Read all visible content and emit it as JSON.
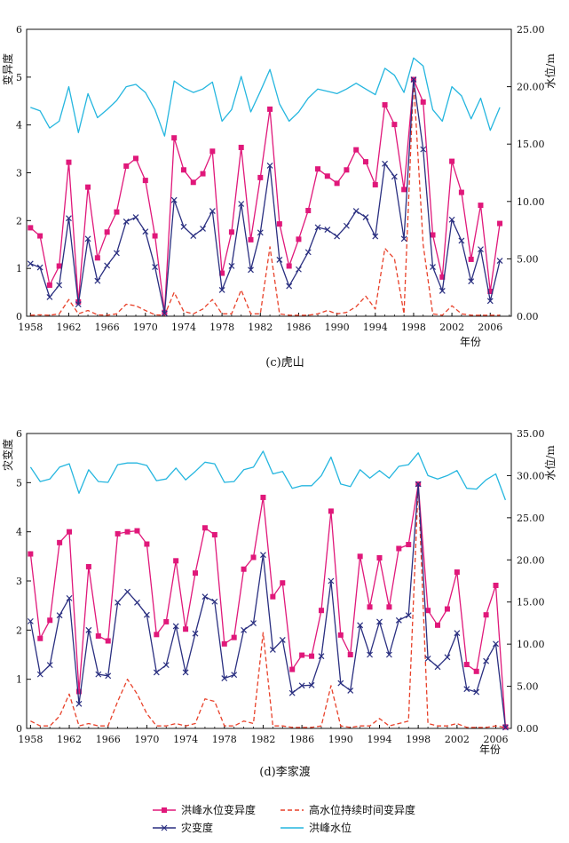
{
  "colors": {
    "variability": "#e0187a",
    "disaster": "#2a2f80",
    "duration": "#e8412a",
    "peak_level": "#25b6df"
  },
  "legend": {
    "variability": "洪峰水位变异度",
    "duration": "高水位持续时间变异度",
    "disaster": "灾变度",
    "peak_level": "洪峰水位"
  },
  "chart_data": [
    {
      "type": "line",
      "caption": "(c)虎山",
      "ylabel_left": "变异度",
      "ylabel_right": "水位/m",
      "xlabel": "年份",
      "x_ticks": [
        1958,
        1962,
        1966,
        1970,
        1974,
        1978,
        1982,
        1986,
        1990,
        1994,
        1998,
        2002,
        2006
      ],
      "x_tick_labels": [
        "1958",
        "1962",
        "1966",
        "1970",
        "1974",
        "1978",
        "1982",
        "1986",
        "1990",
        "1994",
        "1998",
        "2002",
        "2006"
      ],
      "xlim": [
        1957.6,
        2008.2
      ],
      "ylim_left": [
        0,
        6
      ],
      "ylim_right": [
        0,
        25
      ],
      "y_left_tick_labels": [
        "0",
        "1",
        "2",
        "3",
        "4",
        "5",
        "6"
      ],
      "y_right_tick_labels": [
        "0.00",
        "5.00",
        "10.00",
        "15.00",
        "20.00",
        "25.00"
      ],
      "series": [
        {
          "key": "variability",
          "axis": "left",
          "x": [
            1958,
            1959,
            1960,
            1961,
            1962,
            1963,
            1964,
            1965,
            1966,
            1967,
            1968,
            1969,
            1970,
            1971,
            1972,
            1973,
            1974,
            1975,
            1976,
            1977,
            1978,
            1979,
            1980,
            1981,
            1982,
            1983,
            1984,
            1985,
            1986,
            1987,
            1988,
            1989,
            1990,
            1991,
            1992,
            1993,
            1994,
            1995,
            1996,
            1997,
            1998,
            1999,
            2000,
            2001,
            2002,
            2003,
            2004,
            2005,
            2006,
            2007
          ],
          "values": [
            1.85,
            1.68,
            0.65,
            1.05,
            3.22,
            0.3,
            2.7,
            1.22,
            1.76,
            2.18,
            3.14,
            3.3,
            2.84,
            1.68,
            0.08,
            3.73,
            3.06,
            2.8,
            2.98,
            3.45,
            0.9,
            1.76,
            3.53,
            1.6,
            2.9,
            4.33,
            1.93,
            1.05,
            1.61,
            2.21,
            3.08,
            2.93,
            2.78,
            3.06,
            3.48,
            3.23,
            2.75,
            4.42,
            4.01,
            2.65,
            4.95,
            4.48,
            1.7,
            0.82,
            3.24,
            2.59,
            1.19,
            2.32,
            0.52,
            1.94
          ]
        },
        {
          "key": "disaster",
          "axis": "left",
          "x": [
            1958,
            1959,
            1960,
            1961,
            1962,
            1963,
            1964,
            1965,
            1966,
            1967,
            1968,
            1969,
            1970,
            1971,
            1972,
            1973,
            1974,
            1975,
            1976,
            1977,
            1978,
            1979,
            1980,
            1981,
            1982,
            1983,
            1984,
            1985,
            1986,
            1987,
            1988,
            1989,
            1990,
            1991,
            1992,
            1993,
            1994,
            1995,
            1996,
            1997,
            1998,
            1999,
            2000,
            2001,
            2002,
            2003,
            2004,
            2005,
            2006,
            2007
          ],
          "values": [
            1.1,
            1.02,
            0.4,
            0.65,
            2.05,
            0.25,
            1.62,
            0.74,
            1.06,
            1.32,
            1.98,
            2.07,
            1.77,
            1.03,
            0.06,
            2.43,
            1.87,
            1.68,
            1.83,
            2.2,
            0.55,
            1.05,
            2.35,
            0.97,
            1.75,
            3.15,
            1.18,
            0.63,
            0.98,
            1.34,
            1.86,
            1.81,
            1.67,
            1.89,
            2.2,
            2.07,
            1.67,
            3.19,
            2.92,
            1.62,
            4.95,
            3.49,
            1.03,
            0.53,
            2.02,
            1.58,
            0.73,
            1.4,
            0.32,
            1.16
          ]
        },
        {
          "key": "duration",
          "axis": "left",
          "x": [
            1958,
            1959,
            1960,
            1961,
            1962,
            1963,
            1964,
            1965,
            1966,
            1967,
            1968,
            1969,
            1970,
            1971,
            1972,
            1973,
            1974,
            1975,
            1976,
            1977,
            1978,
            1979,
            1980,
            1981,
            1982,
            1983,
            1984,
            1985,
            1986,
            1987,
            1988,
            1989,
            1990,
            1991,
            1992,
            1993,
            1994,
            1995,
            1996,
            1997,
            1998,
            1999,
            2000,
            2001,
            2002,
            2003,
            2004,
            2005,
            2006,
            2007
          ],
          "values": [
            0.02,
            0.03,
            0.02,
            0.05,
            0.35,
            0.05,
            0.12,
            0.03,
            0.02,
            0.05,
            0.25,
            0.22,
            0.12,
            0.03,
            0.02,
            0.5,
            0.1,
            0.05,
            0.15,
            0.35,
            0.05,
            0.05,
            0.55,
            0.05,
            0.05,
            1.45,
            0.05,
            0.02,
            0.02,
            0.02,
            0.05,
            0.12,
            0.05,
            0.08,
            0.2,
            0.42,
            0.15,
            1.42,
            1.2,
            0.05,
            4.95,
            1.5,
            0.05,
            0.02,
            0.22,
            0.05,
            0.02,
            0.02,
            0.02,
            0.02
          ]
        },
        {
          "key": "peak_level",
          "axis": "right",
          "x": [
            1958,
            1959,
            1960,
            1961,
            1962,
            1963,
            1964,
            1965,
            1966,
            1967,
            1968,
            1969,
            1970,
            1971,
            1972,
            1973,
            1974,
            1975,
            1976,
            1977,
            1978,
            1979,
            1980,
            1981,
            1982,
            1983,
            1984,
            1985,
            1986,
            1987,
            1988,
            1989,
            1990,
            1991,
            1992,
            1993,
            1994,
            1995,
            1996,
            1997,
            1998,
            1999,
            2000,
            2001,
            2002,
            2003,
            2004,
            2005,
            2006,
            2007
          ],
          "values": [
            18.2,
            17.9,
            16.4,
            17.0,
            20.0,
            16.0,
            19.4,
            17.3,
            18.0,
            18.8,
            20.0,
            20.2,
            19.5,
            18.0,
            15.7,
            20.5,
            19.9,
            19.5,
            19.8,
            20.4,
            17.0,
            18.0,
            20.9,
            17.8,
            19.6,
            21.5,
            18.5,
            17.0,
            17.8,
            19.0,
            19.8,
            19.6,
            19.4,
            19.8,
            20.3,
            19.8,
            19.3,
            21.6,
            21.0,
            19.5,
            22.5,
            21.8,
            18.0,
            17.0,
            20.0,
            19.2,
            17.2,
            19.0,
            16.2,
            18.2
          ]
        }
      ]
    },
    {
      "type": "line",
      "caption": "(d)李家渡",
      "ylabel_left": "灾变度",
      "ylabel_right": "水位/m",
      "xlabel": "年份",
      "x_ticks": [
        1958,
        1962,
        1966,
        1970,
        1974,
        1978,
        1982,
        1986,
        1990,
        1994,
        1998,
        2002,
        2006
      ],
      "x_tick_labels": [
        "1958",
        "1962",
        "1966",
        "1970",
        "1974",
        "1978",
        "1982",
        "1986",
        "1990",
        "1994",
        "1998",
        "2002",
        "2006"
      ],
      "xlim": [
        1957.6,
        2007.6
      ],
      "ylim_left": [
        0,
        6
      ],
      "ylim_right": [
        0,
        35
      ],
      "y_left_tick_labels": [
        "0",
        "1",
        "2",
        "3",
        "4",
        "5",
        "6"
      ],
      "y_right_tick_labels": [
        "0.00",
        "5.00",
        "10.00",
        "15.00",
        "20.00",
        "25.00",
        "30.00",
        "35.00"
      ],
      "series": [
        {
          "key": "variability",
          "axis": "left",
          "x": [
            1958,
            1959,
            1960,
            1961,
            1962,
            1963,
            1964,
            1965,
            1966,
            1967,
            1968,
            1969,
            1970,
            1971,
            1972,
            1973,
            1974,
            1975,
            1976,
            1977,
            1978,
            1979,
            1980,
            1981,
            1982,
            1983,
            1984,
            1985,
            1986,
            1987,
            1988,
            1989,
            1990,
            1991,
            1992,
            1993,
            1994,
            1995,
            1996,
            1997,
            1998,
            1999,
            2000,
            2001,
            2002,
            2003,
            2004,
            2005,
            2006,
            2007
          ],
          "values": [
            3.55,
            1.83,
            2.2,
            3.78,
            4.0,
            0.75,
            3.29,
            1.88,
            1.78,
            3.96,
            4.0,
            4.02,
            3.75,
            1.91,
            2.17,
            3.41,
            2.02,
            3.16,
            4.08,
            3.94,
            1.72,
            1.85,
            3.24,
            3.48,
            4.7,
            2.68,
            2.96,
            1.2,
            1.49,
            1.47,
            2.4,
            4.42,
            1.9,
            1.5,
            3.5,
            2.47,
            3.47,
            2.47,
            3.66,
            3.74,
            4.97,
            2.4,
            2.1,
            2.43,
            3.18,
            1.3,
            1.16,
            2.31,
            2.91,
            0.03
          ]
        },
        {
          "key": "disaster",
          "axis": "left",
          "x": [
            1958,
            1959,
            1960,
            1961,
            1962,
            1963,
            1964,
            1965,
            1966,
            1967,
            1968,
            1969,
            1970,
            1971,
            1972,
            1973,
            1974,
            1975,
            1976,
            1977,
            1978,
            1979,
            1980,
            1981,
            1982,
            1983,
            1984,
            1985,
            1986,
            1987,
            1988,
            1989,
            1990,
            1991,
            1992,
            1993,
            1994,
            1995,
            1996,
            1997,
            1998,
            1999,
            2000,
            2001,
            2002,
            2003,
            2004,
            2005,
            2006,
            2007
          ],
          "values": [
            2.18,
            1.1,
            1.29,
            2.3,
            2.65,
            0.5,
            2.0,
            1.1,
            1.07,
            2.56,
            2.78,
            2.56,
            2.31,
            1.14,
            1.29,
            2.08,
            1.14,
            1.93,
            2.68,
            2.58,
            1.02,
            1.09,
            2.0,
            2.14,
            3.53,
            1.6,
            1.8,
            0.72,
            0.87,
            0.88,
            1.47,
            3.0,
            0.92,
            0.77,
            2.1,
            1.5,
            2.17,
            1.5,
            2.2,
            2.3,
            4.97,
            1.42,
            1.25,
            1.45,
            1.94,
            0.8,
            0.74,
            1.37,
            1.72,
            0.02
          ]
        },
        {
          "key": "duration",
          "axis": "left",
          "x": [
            1958,
            1959,
            1960,
            1961,
            1962,
            1963,
            1964,
            1965,
            1966,
            1967,
            1968,
            1969,
            1970,
            1971,
            1972,
            1973,
            1974,
            1975,
            1976,
            1977,
            1978,
            1979,
            1980,
            1981,
            1982,
            1983,
            1984,
            1985,
            1986,
            1987,
            1988,
            1989,
            1990,
            1991,
            1992,
            1993,
            1994,
            1995,
            1996,
            1997,
            1998,
            1999,
            2000,
            2001,
            2002,
            2003,
            2004,
            2005,
            2006,
            2007
          ],
          "values": [
            0.15,
            0.05,
            0.05,
            0.25,
            0.7,
            0.05,
            0.1,
            0.05,
            0.05,
            0.55,
            1.0,
            0.7,
            0.3,
            0.05,
            0.05,
            0.1,
            0.05,
            0.1,
            0.6,
            0.55,
            0.05,
            0.05,
            0.15,
            0.1,
            1.95,
            0.05,
            0.05,
            0.02,
            0.02,
            0.02,
            0.05,
            0.87,
            0.05,
            0.02,
            0.05,
            0.05,
            0.2,
            0.05,
            0.1,
            0.15,
            4.97,
            0.1,
            0.05,
            0.05,
            0.1,
            0.02,
            0.02,
            0.02,
            0.05,
            0.02
          ]
        },
        {
          "key": "peak_level",
          "axis": "right",
          "x": [
            1958,
            1959,
            1960,
            1961,
            1962,
            1963,
            1964,
            1965,
            1966,
            1967,
            1968,
            1969,
            1970,
            1971,
            1972,
            1973,
            1974,
            1975,
            1976,
            1977,
            1978,
            1979,
            1980,
            1981,
            1982,
            1983,
            1984,
            1985,
            1986,
            1987,
            1988,
            1989,
            1990,
            1991,
            1992,
            1993,
            1994,
            1995,
            1996,
            1997,
            1998,
            1999,
            2000,
            2001,
            2002,
            2003,
            2004,
            2005,
            2006,
            2007
          ],
          "values": [
            31.0,
            29.3,
            29.6,
            31.0,
            31.4,
            27.9,
            30.7,
            29.3,
            29.2,
            31.3,
            31.5,
            31.5,
            31.2,
            29.4,
            29.6,
            30.9,
            29.5,
            30.5,
            31.6,
            31.4,
            29.2,
            29.3,
            30.7,
            31.0,
            32.9,
            30.2,
            30.5,
            28.5,
            28.8,
            28.8,
            30.0,
            32.2,
            29.0,
            28.7,
            30.7,
            29.7,
            30.6,
            29.7,
            31.1,
            31.3,
            32.7,
            30.0,
            29.6,
            30.0,
            30.6,
            28.5,
            28.4,
            29.5,
            30.2,
            27.1
          ]
        }
      ]
    }
  ]
}
